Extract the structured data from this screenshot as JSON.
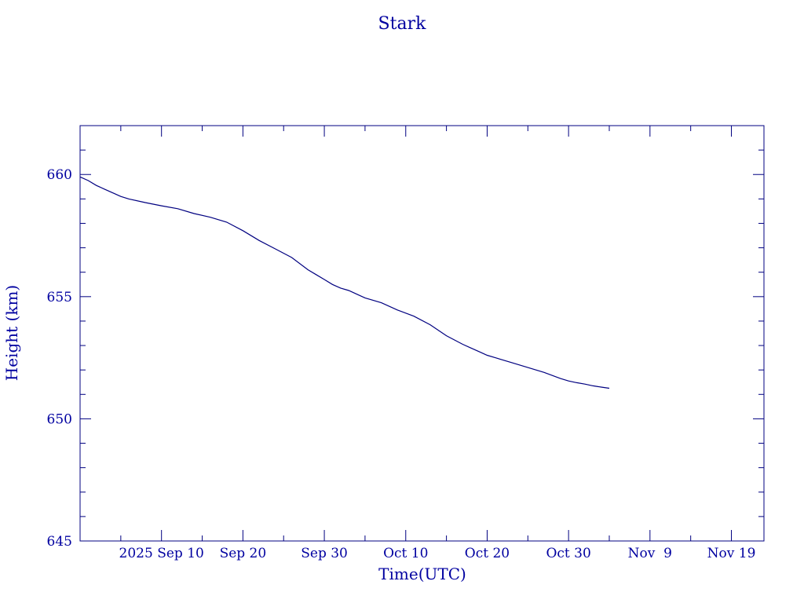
{
  "chart_data": {
    "type": "line",
    "title": "Stark",
    "xlabel": "Time(UTC)",
    "ylabel": "Height (km)",
    "color": "#000080",
    "text_color": "#0000a0",
    "grid": false,
    "x_ticks": [
      {
        "label": "2025 Sep 10",
        "date": "2025-09-10"
      },
      {
        "label": "Sep 20",
        "date": "2025-09-20"
      },
      {
        "label": "Sep 30",
        "date": "2025-09-30"
      },
      {
        "label": "Oct 10",
        "date": "2025-10-10"
      },
      {
        "label": "Oct 20",
        "date": "2025-10-20"
      },
      {
        "label": "Oct 30",
        "date": "2025-10-30"
      },
      {
        "label": "Nov  9",
        "date": "2025-11-09"
      },
      {
        "label": "Nov 19",
        "date": "2025-11-19"
      }
    ],
    "xlim": [
      "2025-08-31",
      "2025-11-23"
    ],
    "ylim": [
      645,
      662
    ],
    "y_ticks": [
      645,
      650,
      655,
      660
    ],
    "series": [
      {
        "x": [
          "2025-08-31",
          "2025-09-01",
          "2025-09-02",
          "2025-09-03",
          "2025-09-04",
          "2025-09-05",
          "2025-09-06",
          "2025-09-08",
          "2025-09-10",
          "2025-09-12",
          "2025-09-14",
          "2025-09-16",
          "2025-09-18",
          "2025-09-20",
          "2025-09-22",
          "2025-09-24",
          "2025-09-26",
          "2025-09-28",
          "2025-09-29",
          "2025-09-30",
          "2025-10-01",
          "2025-10-02",
          "2025-10-03",
          "2025-10-04",
          "2025-10-05",
          "2025-10-07",
          "2025-10-09",
          "2025-10-11",
          "2025-10-13",
          "2025-10-15",
          "2025-10-17",
          "2025-10-18",
          "2025-10-19",
          "2025-10-20",
          "2025-10-21",
          "2025-10-23",
          "2025-10-25",
          "2025-10-27",
          "2025-10-29",
          "2025-10-30",
          "2025-10-31",
          "2025-11-01",
          "2025-11-02",
          "2025-11-03",
          "2025-11-04"
        ],
        "y": [
          659.9,
          659.75,
          659.55,
          659.4,
          659.25,
          659.1,
          659.0,
          658.85,
          658.72,
          658.6,
          658.4,
          658.25,
          658.05,
          657.7,
          657.3,
          656.95,
          656.6,
          656.1,
          655.9,
          655.7,
          655.5,
          655.35,
          655.25,
          655.1,
          654.95,
          654.75,
          654.45,
          654.2,
          653.85,
          653.4,
          653.05,
          652.9,
          652.75,
          652.6,
          652.5,
          652.3,
          652.1,
          651.9,
          651.65,
          651.55,
          651.48,
          651.42,
          651.35,
          651.3,
          651.25
        ]
      }
    ]
  }
}
